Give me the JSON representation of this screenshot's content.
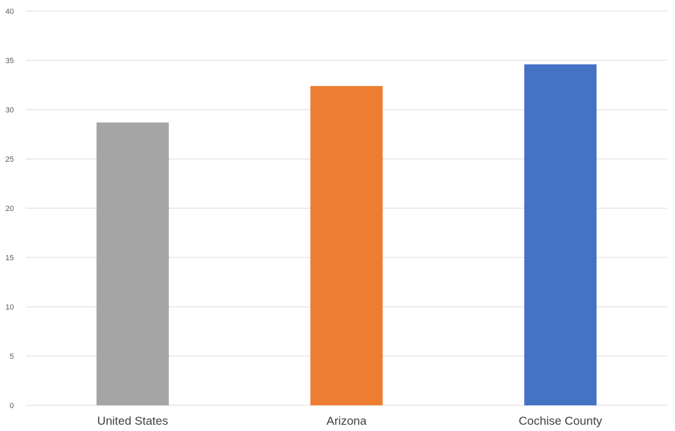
{
  "chart_data": {
    "type": "bar",
    "title": "",
    "xlabel": "",
    "ylabel": "",
    "categories": [
      "United States",
      "Arizona",
      "Cochise County"
    ],
    "values": [
      28.7,
      32.4,
      34.6
    ],
    "colors": [
      "#a5a5a5",
      "#ed7d31",
      "#4472c4"
    ],
    "ylim": [
      0,
      40
    ],
    "yticks": [
      "0",
      "5",
      "10",
      "15",
      "20",
      "25",
      "30",
      "35",
      "40"
    ],
    "grid": true,
    "legend": "none"
  }
}
